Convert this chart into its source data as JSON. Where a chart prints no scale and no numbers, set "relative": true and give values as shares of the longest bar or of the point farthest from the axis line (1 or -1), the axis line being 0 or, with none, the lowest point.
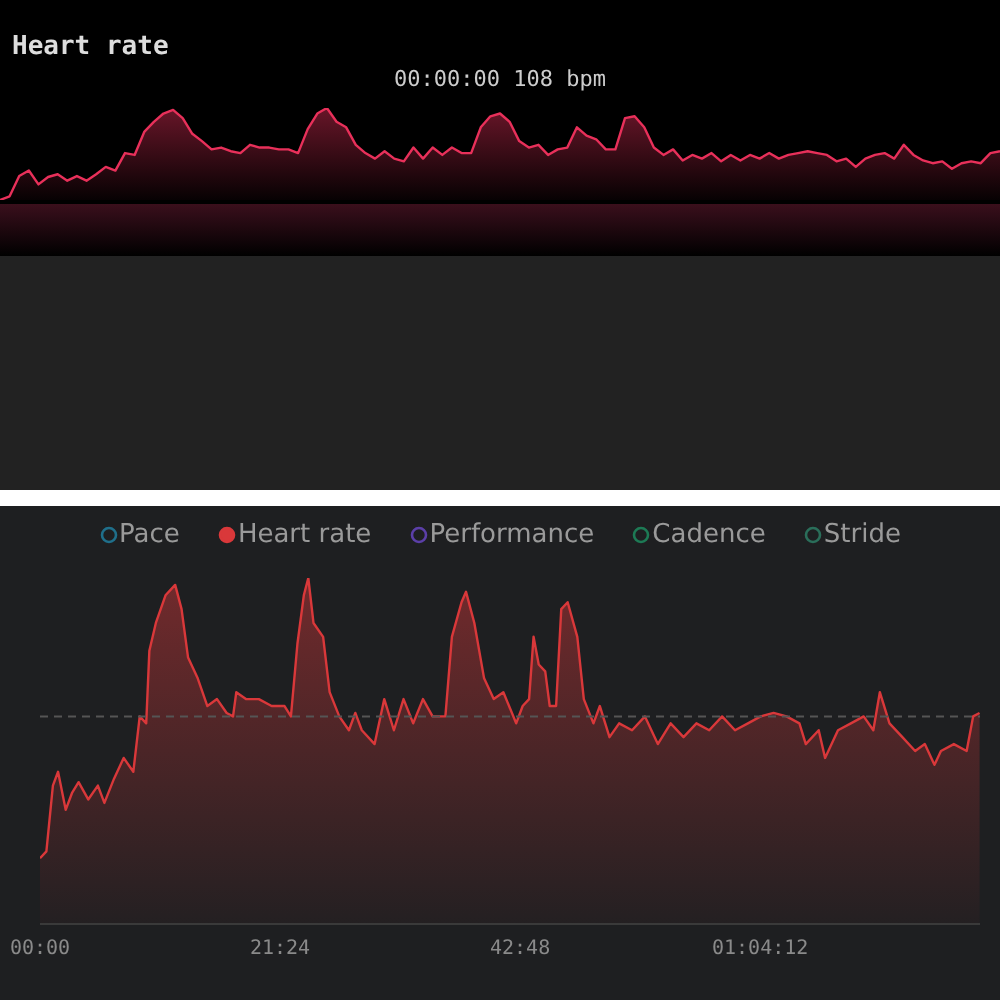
{
  "chart_data": [
    {
      "type": "area",
      "relative": true,
      "title": "Heart rate",
      "subtitle": "00:00:00 108 bpm",
      "tick_labels": false,
      "grid": false,
      "legend": false,
      "categories": [
        null,
        null,
        null,
        null,
        null,
        null,
        null,
        null,
        null,
        null,
        null,
        null,
        null,
        null,
        null,
        null,
        null,
        null,
        null,
        null,
        null,
        null,
        null,
        null,
        null,
        null,
        null,
        null,
        null,
        null,
        null,
        null,
        null,
        null,
        null,
        null,
        null,
        null,
        null,
        null,
        null,
        null,
        null,
        null,
        null,
        null,
        null,
        null,
        null,
        null,
        null,
        null,
        null,
        null,
        null,
        null,
        null,
        null,
        null,
        null,
        null,
        null,
        null,
        null,
        null,
        null,
        null,
        null,
        null,
        null,
        null,
        null,
        null,
        null,
        null,
        null,
        null,
        null,
        null,
        null,
        null,
        null,
        null,
        null,
        null,
        null,
        null,
        null,
        null,
        null,
        null,
        null,
        null,
        null,
        null,
        null,
        null,
        null,
        null,
        null,
        null,
        null,
        null,
        null,
        null
      ],
      "series": [
        {
          "color": "#e8305a",
          "values": [
            0,
            0.04,
            0.26,
            0.32,
            0.17,
            0.25,
            0.28,
            0.21,
            0.26,
            0.21,
            0.28,
            0.36,
            0.32,
            0.51,
            0.49,
            0.74,
            0.85,
            0.94,
            0.98,
            0.89,
            0.72,
            0.64,
            0.55,
            0.57,
            0.53,
            0.51,
            0.6,
            0.57,
            0.57,
            0.55,
            0.55,
            0.51,
            0.77,
            0.94,
            1,
            0.85,
            0.79,
            0.6,
            0.51,
            0.45,
            0.53,
            0.45,
            0.42,
            0.57,
            0.45,
            0.57,
            0.49,
            0.57,
            0.51,
            0.51,
            0.79,
            0.91,
            0.94,
            0.85,
            0.64,
            0.57,
            0.6,
            0.49,
            0.55,
            0.57,
            0.79,
            0.7,
            0.66,
            0.55,
            0.55,
            0.89,
            0.91,
            0.79,
            0.57,
            0.49,
            0.55,
            0.43,
            0.49,
            0.45,
            0.51,
            0.42,
            0.49,
            0.43,
            0.49,
            0.45,
            0.51,
            0.45,
            0.49,
            0.51,
            0.53,
            0.51,
            0.49,
            0.42,
            0.45,
            0.36,
            0.45,
            0.49,
            0.51,
            0.45,
            0.6,
            0.49,
            0.43,
            0.4,
            0.42,
            0.34,
            0.4,
            0.42,
            0.4,
            0.51,
            0.53
          ]
        }
      ]
    },
    {
      "type": "area",
      "relative": true,
      "xlim": [
        0,
        83.8
      ],
      "xticks": [
        {
          "value": 0,
          "label": "00:00"
        },
        {
          "value": 21.4,
          "label": "21:24"
        },
        {
          "value": 42.8,
          "label": "42:48"
        },
        {
          "value": 64.2,
          "label": "01:04:12"
        }
      ],
      "tick_labels": "x",
      "grid": false,
      "legend": "top",
      "ref_lines": [
        {
          "axis": "y",
          "value": 0.6,
          "color": "#555555",
          "line_style": "dashed"
        }
      ],
      "x": [
        0,
        0.57,
        1.15,
        1.61,
        2.29,
        2.87,
        3.44,
        4.3,
        5.16,
        5.74,
        6.6,
        7.46,
        8.32,
        8.89,
        9.47,
        9.75,
        10.33,
        11.19,
        12.05,
        12.62,
        13.2,
        14.06,
        14.92,
        15.78,
        16.64,
        17.21,
        17.5,
        18.36,
        19.51,
        20.65,
        21.8,
        22.37,
        22.95,
        23.52,
        23.92,
        24.38,
        25.24,
        25.82,
        26.68,
        27.54,
        28.11,
        28.69,
        29.83,
        30.69,
        31.55,
        32.41,
        33.27,
        34.14,
        35,
        36.14,
        36.72,
        37.58,
        37.98,
        38.72,
        39.59,
        40.45,
        41.31,
        42.45,
        43.03,
        43.6,
        44,
        44.46,
        45.04,
        45.44,
        46.01,
        46.47,
        47.04,
        47.9,
        48.48,
        49.34,
        49.91,
        50.77,
        51.63,
        52.78,
        53.93,
        55.08,
        56.22,
        57.37,
        58.52,
        59.66,
        60.81,
        61.96,
        63.11,
        64.25,
        65.4,
        66.55,
        67.7,
        68.27,
        69.42,
        69.99,
        71.14,
        72.29,
        73.43,
        74.29,
        74.87,
        75.73,
        76.88,
        78.02,
        78.88,
        79.74,
        80.32,
        81.47,
        82.61,
        83.19,
        83.76
      ],
      "series": [
        {
          "name": "Pace",
          "color": "#1f6f8b",
          "values": [
            null,
            null,
            null,
            null,
            null,
            null,
            null,
            null,
            null,
            null,
            null,
            null,
            null,
            null,
            null,
            null,
            null,
            null,
            null,
            null,
            null,
            null,
            null,
            null,
            null,
            null,
            null,
            null,
            null,
            null,
            null,
            null,
            null,
            null,
            null,
            null,
            null,
            null,
            null,
            null,
            null,
            null,
            null,
            null,
            null,
            null,
            null,
            null,
            null,
            null,
            null,
            null,
            null,
            null,
            null,
            null,
            null,
            null,
            null,
            null,
            null,
            null,
            null,
            null,
            null,
            null,
            null,
            null,
            null,
            null,
            null,
            null,
            null,
            null,
            null,
            null,
            null,
            null,
            null,
            null,
            null,
            null,
            null,
            null,
            null,
            null,
            null,
            null,
            null,
            null,
            null,
            null,
            null,
            null,
            null,
            null,
            null,
            null,
            null,
            null,
            null,
            null,
            null,
            null,
            null
          ]
        },
        {
          "name": "Heart rate",
          "color": "#d9383a",
          "values": [
            0.19,
            0.21,
            0.4,
            0.44,
            0.33,
            0.38,
            0.41,
            0.36,
            0.4,
            0.35,
            0.42,
            0.48,
            0.44,
            0.6,
            0.58,
            0.79,
            0.87,
            0.95,
            0.98,
            0.91,
            0.77,
            0.71,
            0.63,
            0.65,
            0.61,
            0.6,
            0.67,
            0.65,
            0.65,
            0.63,
            0.63,
            0.6,
            0.81,
            0.95,
            1,
            0.87,
            0.83,
            0.67,
            0.6,
            0.56,
            0.61,
            0.56,
            0.52,
            0.65,
            0.56,
            0.65,
            0.58,
            0.65,
            0.6,
            0.6,
            0.83,
            0.93,
            0.96,
            0.87,
            0.71,
            0.65,
            0.67,
            0.58,
            0.63,
            0.65,
            0.83,
            0.75,
            0.73,
            0.63,
            0.63,
            0.91,
            0.93,
            0.83,
            0.65,
            0.58,
            0.63,
            0.54,
            0.58,
            0.56,
            0.6,
            0.52,
            0.58,
            0.54,
            0.58,
            0.56,
            0.6,
            0.56,
            0.58,
            0.6,
            0.61,
            0.6,
            0.58,
            0.52,
            0.56,
            0.48,
            0.56,
            0.58,
            0.6,
            0.56,
            0.67,
            0.58,
            0.54,
            0.5,
            0.52,
            0.46,
            0.5,
            0.52,
            0.5,
            0.6,
            0.61
          ]
        },
        {
          "name": "Performance",
          "color": "#5b3fa8",
          "values": [
            null,
            null,
            null,
            null,
            null,
            null,
            null,
            null,
            null,
            null,
            null,
            null,
            null,
            null,
            null,
            null,
            null,
            null,
            null,
            null,
            null,
            null,
            null,
            null,
            null,
            null,
            null,
            null,
            null,
            null,
            null,
            null,
            null,
            null,
            null,
            null,
            null,
            null,
            null,
            null,
            null,
            null,
            null,
            null,
            null,
            null,
            null,
            null,
            null,
            null,
            null,
            null,
            null,
            null,
            null,
            null,
            null,
            null,
            null,
            null,
            null,
            null,
            null,
            null,
            null,
            null,
            null,
            null,
            null,
            null,
            null,
            null,
            null,
            null,
            null,
            null,
            null,
            null,
            null,
            null,
            null,
            null,
            null,
            null,
            null,
            null,
            null,
            null,
            null,
            null,
            null,
            null,
            null,
            null,
            null,
            null,
            null,
            null,
            null,
            null,
            null,
            null,
            null,
            null,
            null
          ]
        },
        {
          "name": "Cadence",
          "color": "#1d7a55",
          "values": [
            null,
            null,
            null,
            null,
            null,
            null,
            null,
            null,
            null,
            null,
            null,
            null,
            null,
            null,
            null,
            null,
            null,
            null,
            null,
            null,
            null,
            null,
            null,
            null,
            null,
            null,
            null,
            null,
            null,
            null,
            null,
            null,
            null,
            null,
            null,
            null,
            null,
            null,
            null,
            null,
            null,
            null,
            null,
            null,
            null,
            null,
            null,
            null,
            null,
            null,
            null,
            null,
            null,
            null,
            null,
            null,
            null,
            null,
            null,
            null,
            null,
            null,
            null,
            null,
            null,
            null,
            null,
            null,
            null,
            null,
            null,
            null,
            null,
            null,
            null,
            null,
            null,
            null,
            null,
            null,
            null,
            null,
            null,
            null,
            null,
            null,
            null,
            null,
            null,
            null,
            null,
            null,
            null,
            null,
            null,
            null,
            null,
            null,
            null,
            null,
            null,
            null,
            null,
            null,
            null
          ]
        },
        {
          "name": "Stride",
          "color": "#2a6e5a",
          "values": [
            null,
            null,
            null,
            null,
            null,
            null,
            null,
            null,
            null,
            null,
            null,
            null,
            null,
            null,
            null,
            null,
            null,
            null,
            null,
            null,
            null,
            null,
            null,
            null,
            null,
            null,
            null,
            null,
            null,
            null,
            null,
            null,
            null,
            null,
            null,
            null,
            null,
            null,
            null,
            null,
            null,
            null,
            null,
            null,
            null,
            null,
            null,
            null,
            null,
            null,
            null,
            null,
            null,
            null,
            null,
            null,
            null,
            null,
            null,
            null,
            null,
            null,
            null,
            null,
            null,
            null,
            null,
            null,
            null,
            null,
            null,
            null,
            null,
            null,
            null,
            null,
            null,
            null,
            null,
            null,
            null,
            null,
            null,
            null,
            null,
            null,
            null,
            null,
            null,
            null,
            null,
            null,
            null,
            null,
            null,
            null,
            null,
            null,
            null,
            null,
            null,
            null,
            null,
            null,
            null
          ]
        }
      ]
    }
  ]
}
